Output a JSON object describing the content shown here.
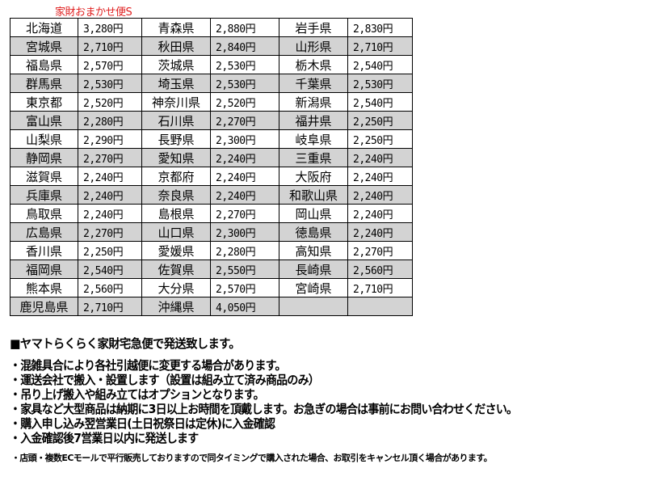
{
  "caption": "家財おまかせ便S",
  "rows": [
    [
      [
        "北海道",
        "3,280円"
      ],
      [
        "青森県",
        "2,880円"
      ],
      [
        "岩手県",
        "2,830円"
      ]
    ],
    [
      [
        "宮城県",
        "2,710円"
      ],
      [
        "秋田県",
        "2,840円"
      ],
      [
        "山形県",
        "2,710円"
      ]
    ],
    [
      [
        "福島県",
        "2,570円"
      ],
      [
        "茨城県",
        "2,530円"
      ],
      [
        "栃木県",
        "2,540円"
      ]
    ],
    [
      [
        "群馬県",
        "2,530円"
      ],
      [
        "埼玉県",
        "2,530円"
      ],
      [
        "千葉県",
        "2,530円"
      ]
    ],
    [
      [
        "東京都",
        "2,520円"
      ],
      [
        "神奈川県",
        "2,520円"
      ],
      [
        "新潟県",
        "2,540円"
      ]
    ],
    [
      [
        "富山県",
        "2,280円"
      ],
      [
        "石川県",
        "2,270円"
      ],
      [
        "福井県",
        "2,250円"
      ]
    ],
    [
      [
        "山梨県",
        "2,290円"
      ],
      [
        "長野県",
        "2,300円"
      ],
      [
        "岐阜県",
        "2,250円"
      ]
    ],
    [
      [
        "静岡県",
        "2,270円"
      ],
      [
        "愛知県",
        "2,240円"
      ],
      [
        "三重県",
        "2,240円"
      ]
    ],
    [
      [
        "滋賀県",
        "2,240円"
      ],
      [
        "京都府",
        "2,240円"
      ],
      [
        "大阪府",
        "2,240円"
      ]
    ],
    [
      [
        "兵庫県",
        "2,240円"
      ],
      [
        "奈良県",
        "2,240円"
      ],
      [
        "和歌山県",
        "2,240円"
      ]
    ],
    [
      [
        "鳥取県",
        "2,240円"
      ],
      [
        "島根県",
        "2,270円"
      ],
      [
        "岡山県",
        "2,240円"
      ]
    ],
    [
      [
        "広島県",
        "2,270円"
      ],
      [
        "山口県",
        "2,300円"
      ],
      [
        "徳島県",
        "2,240円"
      ]
    ],
    [
      [
        "香川県",
        "2,250円"
      ],
      [
        "愛媛県",
        "2,280円"
      ],
      [
        "高知県",
        "2,270円"
      ]
    ],
    [
      [
        "福岡県",
        "2,540円"
      ],
      [
        "佐賀県",
        "2,550円"
      ],
      [
        "長崎県",
        "2,560円"
      ]
    ],
    [
      [
        "熊本県",
        "2,560円"
      ],
      [
        "大分県",
        "2,570円"
      ],
      [
        "宮崎県",
        "2,710円"
      ]
    ],
    [
      [
        "鹿児島県",
        "2,710円"
      ],
      [
        "沖縄県",
        "4,050円"
      ],
      [
        "",
        ""
      ]
    ]
  ],
  "notes": {
    "title": "■ヤマトらくらく家財宅急便で発送致します。",
    "items": [
      "・混雑具合により各社引越便に変更する場合があります。",
      "・運送会社で搬入・設置します（設置は組み立て済み商品のみ）",
      "・吊り上げ搬入や組み立てはオプションとなります。",
      "・家具など大型商品は納期に3日以上お時間を頂戴します。お急ぎの場合は事前にお問い合わせください。",
      "・購入申し込み翌営業日(土日祝祭日は定休)に入金確認",
      "・入金確認後7営業日以内に発送します"
    ],
    "footnote": "・店頭・複数ECモールで平行販売しておりますので同タイミングで購入された場合、お取引をキャンセル頂く場合があります。"
  },
  "colors": {
    "caption": "#e02020",
    "row_alt": "#d3d3d3"
  }
}
